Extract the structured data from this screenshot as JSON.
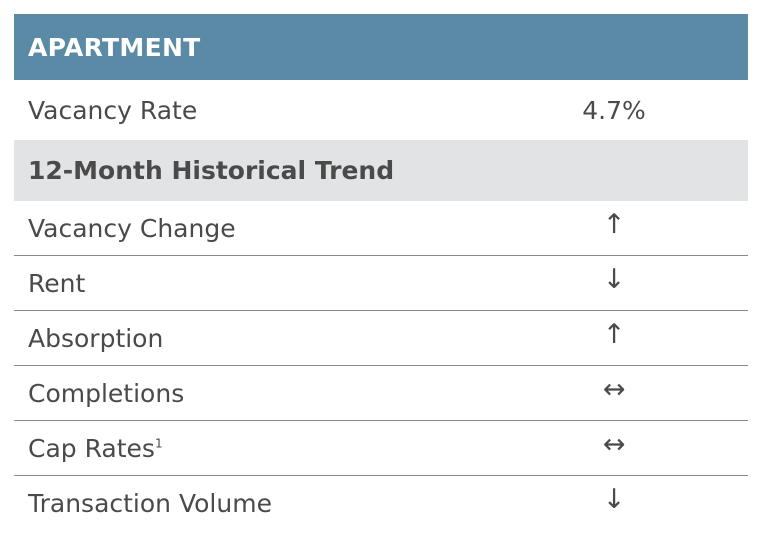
{
  "header": {
    "title": "APARTMENT"
  },
  "vacancy": {
    "label": "Vacancy Rate",
    "value": "4.7%"
  },
  "trend_section": {
    "title": "12-Month Historical Trend"
  },
  "trends": [
    {
      "label": "Vacancy Change",
      "footnote": "",
      "arrow": "↑",
      "icon": "arrow-up-icon"
    },
    {
      "label": "Rent",
      "footnote": "",
      "arrow": "↓",
      "icon": "arrow-down-icon"
    },
    {
      "label": "Absorption",
      "footnote": "",
      "arrow": "↑",
      "icon": "arrow-up-icon"
    },
    {
      "label": "Completions",
      "footnote": "",
      "arrow": "↔",
      "icon": "arrow-left-right-icon"
    },
    {
      "label": "Cap Rates",
      "footnote": "1",
      "arrow": "↔",
      "icon": "arrow-left-right-icon"
    },
    {
      "label": "Transaction Volume",
      "footnote": "",
      "arrow": "↓",
      "icon": "arrow-down-icon"
    }
  ],
  "colors": {
    "header_bg": "#5b8aa6",
    "subheader_bg": "#e1e3e4",
    "text": "#4a4a4a"
  }
}
